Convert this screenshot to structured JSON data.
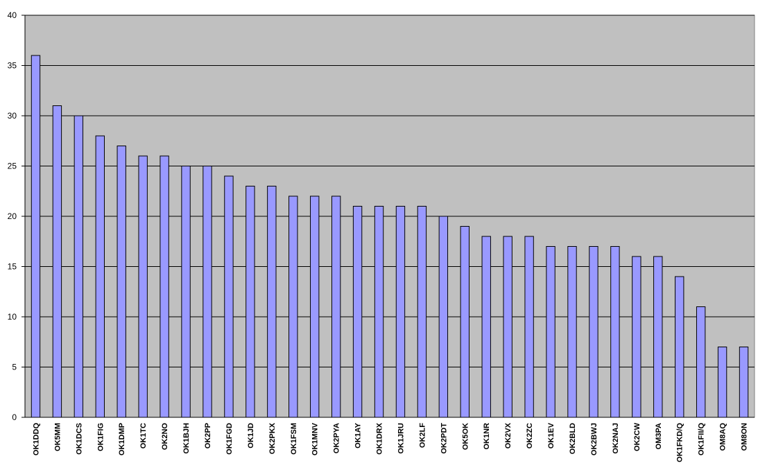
{
  "chart_data": {
    "type": "bar",
    "categories": [
      "OK1DDQ",
      "OK5MM",
      "OK1DCS",
      "OK1FIG",
      "OK1DMP",
      "OK1TC",
      "OK2NO",
      "OK1BJH",
      "OK2PP",
      "OK1FGD",
      "OK1JD",
      "OK2PKX",
      "OK1FSM",
      "OK1MNV",
      "OK2PYA",
      "OK1AY",
      "OK1DRX",
      "OK1JRU",
      "OK2LF",
      "OK2PDT",
      "OK5OK",
      "OK1NR",
      "OK2VX",
      "OK2ZC",
      "OK1EV",
      "OK2BLD",
      "OK2BWJ",
      "OK2NAJ",
      "OK2CW",
      "OM3PA",
      "OK1FKD/Q",
      "OK1FII/Q",
      "OM8AQ",
      "OM8ON"
    ],
    "values": [
      36,
      31,
      30,
      28,
      27,
      26,
      26,
      25,
      25,
      24,
      23,
      23,
      22,
      22,
      22,
      21,
      21,
      21,
      21,
      20,
      19,
      18,
      18,
      18,
      17,
      17,
      17,
      17,
      16,
      16,
      14,
      11,
      7,
      7
    ],
    "color": "#9999ff",
    "ylim": [
      0,
      40
    ],
    "yticks": [
      0,
      5,
      10,
      15,
      20,
      25,
      30,
      35,
      40
    ],
    "grid": true
  }
}
